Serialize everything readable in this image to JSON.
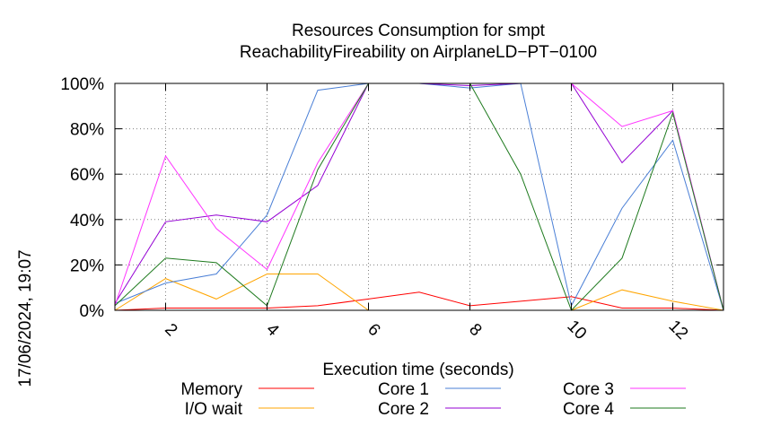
{
  "chart_data": {
    "type": "line",
    "title_line1": "Resources Consumption for smpt",
    "title_line2": "ReachabilityFireability on AirplaneLD−PT−0100",
    "xlabel": "Execution time (seconds)",
    "ylabel": "",
    "side_label": "17/06/2024, 19:07",
    "xlim": [
      1,
      13
    ],
    "ylim": [
      0,
      100
    ],
    "x_ticks": [
      2,
      4,
      6,
      8,
      10,
      12
    ],
    "x_tick_labels": [
      "2",
      "4",
      "6",
      "8",
      "10",
      "12"
    ],
    "y_ticks": [
      0,
      20,
      40,
      60,
      80,
      100
    ],
    "y_tick_labels": [
      "0%",
      "20%",
      "40%",
      "60%",
      "80%",
      "100%"
    ],
    "grid": true,
    "legend_position": "bottom",
    "x": [
      1,
      2,
      3,
      4,
      5,
      6,
      7,
      8,
      9,
      10,
      11,
      12,
      13
    ],
    "series": [
      {
        "name": "Memory",
        "color": "#ff0000",
        "values": [
          0,
          1,
          1,
          1,
          2,
          5,
          8,
          2,
          4,
          6,
          1,
          1,
          0
        ]
      },
      {
        "name": "I/O wait",
        "color": "#ffa500",
        "values": [
          0,
          14,
          5,
          16,
          16,
          0,
          0,
          0,
          0,
          0,
          9,
          4,
          0
        ]
      },
      {
        "name": "Core 1",
        "color": "#4a7fd6",
        "values": [
          3,
          12,
          16,
          42,
          97,
          100,
          100,
          98,
          100,
          2,
          45,
          75,
          0
        ]
      },
      {
        "name": "Core 2",
        "color": "#9400d3",
        "values": [
          3,
          39,
          42,
          39,
          55,
          100,
          100,
          99,
          100,
          100,
          65,
          88,
          0
        ]
      },
      {
        "name": "Core 3",
        "color": "#ff33ff",
        "values": [
          2,
          68,
          36,
          18,
          65,
          100,
          100,
          100,
          100,
          100,
          81,
          88,
          0
        ]
      },
      {
        "name": "Core 4",
        "color": "#1e7a1e",
        "values": [
          2,
          23,
          21,
          2,
          62,
          100,
          100,
          100,
          60,
          0,
          23,
          87,
          0
        ]
      }
    ]
  }
}
